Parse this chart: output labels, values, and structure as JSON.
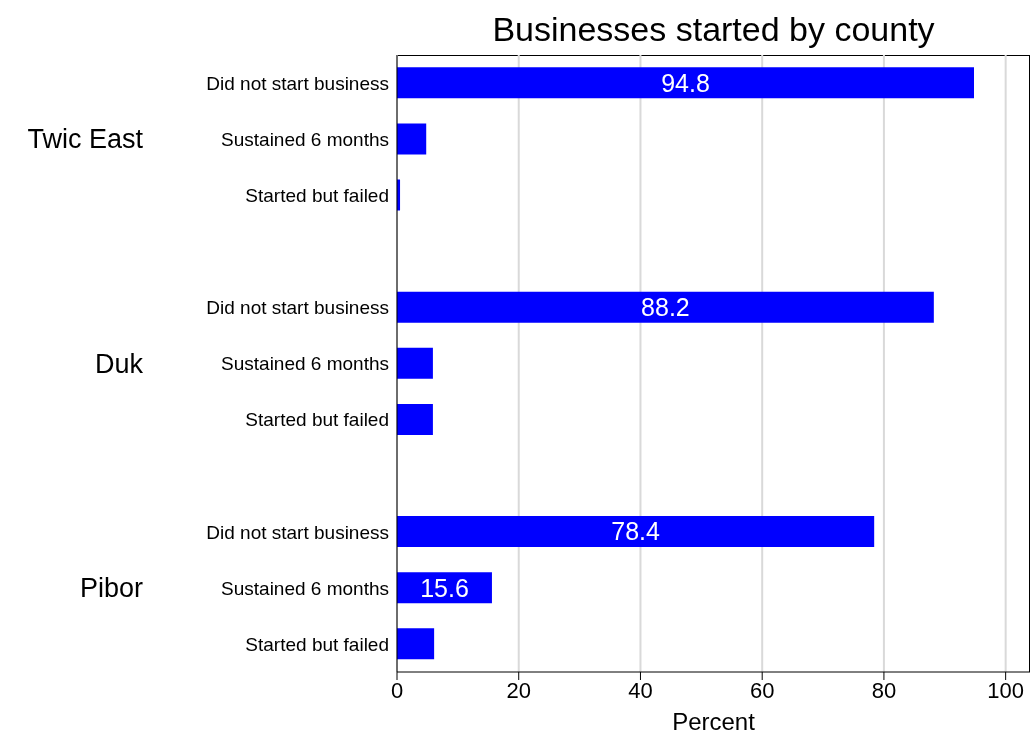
{
  "chart_data": {
    "type": "bar",
    "orientation": "horizontal",
    "title": "Businesses started by county",
    "xlabel": "Percent",
    "categories": [
      "Did not start business",
      "Sustained 6 months",
      "Started but failed",
      null,
      "Did not start business",
      "Sustained 6 months",
      "Started but failed",
      null,
      "Did not start business",
      "Sustained 6 months",
      "Started but failed"
    ],
    "values": [
      94.8,
      4.8,
      0.5,
      null,
      88.2,
      5.9,
      5.9,
      null,
      78.4,
      15.6,
      6.1
    ],
    "value_labels": [
      "94.8",
      null,
      null,
      null,
      "88.2",
      null,
      null,
      null,
      "78.4",
      "15.6",
      null
    ],
    "color": "#0000ff",
    "annotations": [
      "Twic East",
      "Duk",
      "Pibor"
    ],
    "xlim": [
      0,
      104
    ],
    "xticks": [
      0,
      20,
      40,
      60,
      80,
      100
    ],
    "grid": "x"
  }
}
